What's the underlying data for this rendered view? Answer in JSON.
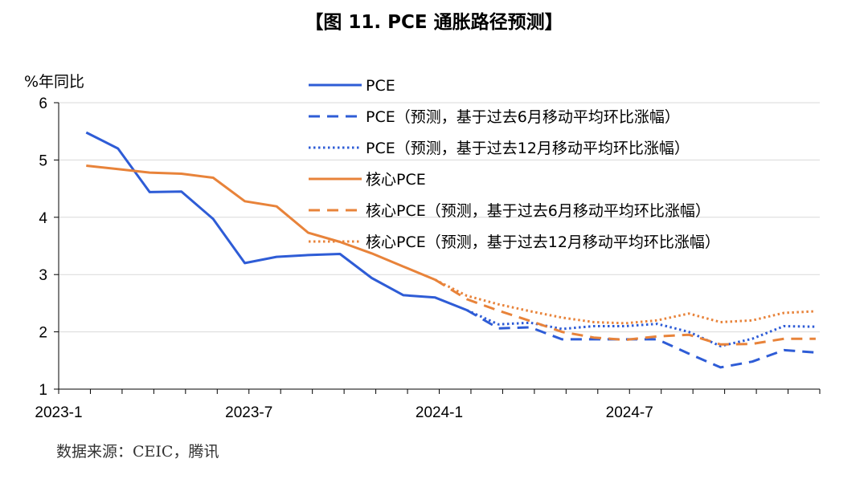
{
  "title": "【图 11. PCE 通胀路径预测】",
  "source": "数据来源：CEIC，腾讯",
  "colors": {
    "blue": "#2E5CD6",
    "orange": "#E8833A",
    "grid": "#D9D9D9",
    "axis": "#000000"
  },
  "chart_data": {
    "type": "line",
    "ylabel": "%年同比",
    "ylim": [
      1,
      6
    ],
    "yticks": [
      "1",
      "2",
      "3",
      "4",
      "5",
      "6"
    ],
    "x_tick_labels": [
      "2023-1",
      "2023-7",
      "2024-1",
      "2024-7"
    ],
    "x_tick_index": [
      0,
      6,
      12,
      18
    ],
    "x_count": 24,
    "grid": "horizontal",
    "legend_position": "top-right",
    "series": [
      {
        "name": "PCE",
        "color": "#2E5CD6",
        "style": "solid",
        "start": 0,
        "values": [
          5.48,
          5.2,
          4.44,
          4.45,
          3.97,
          3.2,
          3.31,
          3.34,
          3.36,
          2.94,
          2.64,
          2.6,
          2.38
        ]
      },
      {
        "name": "PCE（预测，基于过去6月移动平均环比涨幅）",
        "color": "#2E5CD6",
        "style": "dash",
        "start": 12,
        "values": [
          2.38,
          2.06,
          2.08,
          1.87,
          1.87,
          1.87,
          1.87,
          1.62,
          1.38,
          1.48,
          1.68,
          1.64
        ]
      },
      {
        "name": "PCE（预测，基于过去12月移动平均环比涨幅）",
        "color": "#2E5CD6",
        "style": "dot",
        "start": 12,
        "values": [
          2.38,
          2.13,
          2.16,
          2.05,
          2.1,
          2.1,
          2.14,
          2.0,
          1.75,
          1.88,
          2.1,
          2.09
        ]
      },
      {
        "name": "核心PCE",
        "color": "#E8833A",
        "style": "solid",
        "start": 0,
        "values": [
          4.9,
          4.84,
          4.78,
          4.76,
          4.69,
          4.28,
          4.19,
          3.73,
          3.57,
          3.37,
          3.14,
          2.91
        ]
      },
      {
        "name": "核心PCE（预测，基于过去6月移动平均环比涨幅）",
        "color": "#E8833A",
        "style": "dash",
        "start": 11,
        "values": [
          2.91,
          2.57,
          2.37,
          2.19,
          2.0,
          1.9,
          1.86,
          1.92,
          1.95,
          1.78,
          1.79,
          1.88,
          1.88
        ]
      },
      {
        "name": "核心PCE（预测，基于过去12月移动平均环比涨幅）",
        "color": "#E8833A",
        "style": "dot",
        "start": 11,
        "values": [
          2.91,
          2.63,
          2.48,
          2.36,
          2.25,
          2.17,
          2.15,
          2.2,
          2.32,
          2.17,
          2.2,
          2.33,
          2.36
        ]
      }
    ]
  }
}
